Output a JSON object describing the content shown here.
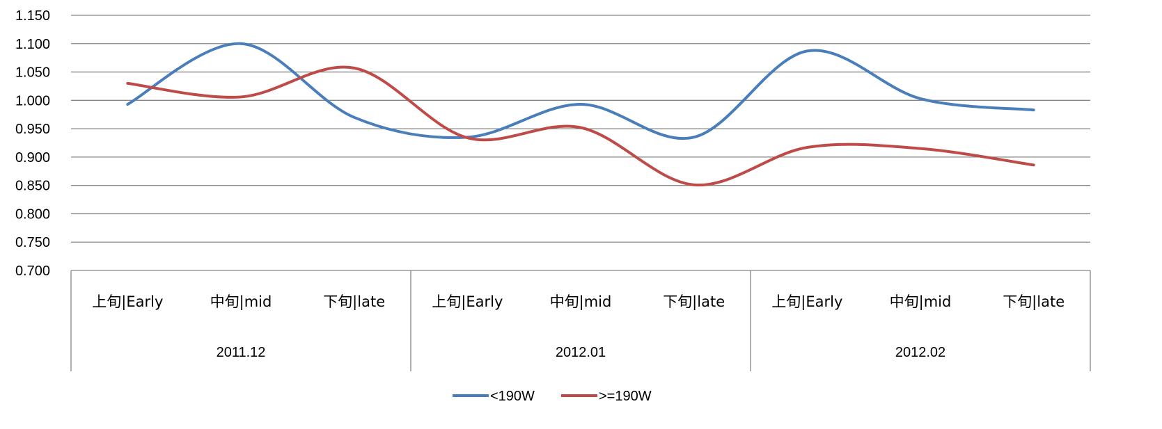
{
  "chart_data": {
    "type": "line",
    "title": "",
    "xlabel": "",
    "ylabel": "",
    "ylim": [
      0.7,
      1.15
    ],
    "y_ticks": [
      "0.700",
      "0.750",
      "0.800",
      "0.850",
      "0.900",
      "0.950",
      "1.000",
      "1.050",
      "1.100",
      "1.150"
    ],
    "grid": true,
    "smooth": true,
    "legend_position": "bottom-center",
    "categories": [
      "上旬|Early",
      "中旬|mid",
      "下旬|late",
      "上旬|Early",
      "中旬|mid",
      "下旬|late",
      "上旬|Early",
      "中旬|mid",
      "下旬|late"
    ],
    "groups": [
      {
        "label": "2011.12",
        "span": 3
      },
      {
        "label": "2012.01",
        "span": 3
      },
      {
        "label": "2012.02",
        "span": 3
      }
    ],
    "series": [
      {
        "name": "<190W",
        "color": "#4A7EBB",
        "values": [
          0.993,
          1.1,
          0.97,
          0.935,
          0.993,
          0.935,
          1.087,
          1.003,
          0.983
        ]
      },
      {
        "name": ">=190W",
        "color": "#BE4B48",
        "values": [
          1.03,
          1.006,
          1.057,
          0.934,
          0.952,
          0.851,
          0.917,
          0.915,
          0.886
        ]
      }
    ]
  }
}
